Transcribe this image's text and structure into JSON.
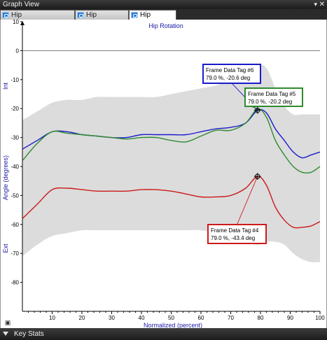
{
  "window": {
    "title": "Graph View",
    "pin_icon": "pin-icon",
    "close_icon": "close-icon"
  },
  "tabs": [
    {
      "label": "Hip Flexion/Extension",
      "icon": "chart-tab-icon",
      "active": false
    },
    {
      "label": "Hip Ab/Adduction",
      "icon": "chart-tab-icon",
      "active": false
    },
    {
      "label": "Hip Rotation",
      "icon": "chart-tab-icon",
      "active": true
    }
  ],
  "chart_data": {
    "type": "line",
    "title": "Hip Rotation",
    "xlabel": "Normalized (percent)",
    "ylabel": "Angle (degrees)",
    "ylabel_top": "Int",
    "ylabel_bottom": "Ext",
    "xlim": [
      0,
      100
    ],
    "ylim": [
      -90,
      10
    ],
    "x_ticks": [
      10,
      20,
      30,
      40,
      50,
      60,
      70,
      80,
      90,
      100
    ],
    "y_ticks": [
      10,
      0,
      -10,
      -20,
      -30,
      -40,
      -50,
      -60,
      -70,
      -80
    ],
    "grid": false,
    "x": [
      0,
      5,
      10,
      15,
      20,
      25,
      30,
      35,
      40,
      45,
      50,
      55,
      60,
      65,
      70,
      75,
      79,
      82,
      85,
      88,
      91,
      94,
      97,
      100
    ],
    "band": {
      "upper": [
        -24,
        -21,
        -18,
        -17,
        -17,
        -16,
        -16,
        -16,
        -16,
        -16,
        -15,
        -14,
        -13,
        -12,
        -10,
        -7,
        -5,
        -6,
        -13,
        -19,
        -22,
        -22,
        -22,
        -22
      ],
      "lower": [
        -71,
        -67,
        -64,
        -63,
        -62,
        -62,
        -62,
        -62,
        -62,
        -62,
        -62,
        -62,
        -62,
        -63,
        -64,
        -66,
        -67,
        -66,
        -66,
        -67,
        -70,
        -72,
        -73,
        -73
      ]
    },
    "series": [
      {
        "color": "#1a1acc",
        "values": [
          -34,
          -31,
          -28,
          -28,
          -29,
          -29.5,
          -30,
          -30,
          -29,
          -29,
          -29,
          -29,
          -28,
          -27,
          -26.5,
          -25,
          -20.6,
          -21.5,
          -27,
          -31,
          -35,
          -37,
          -36,
          -35
        ]
      },
      {
        "color": "#2e8b2e",
        "values": [
          -38,
          -32,
          -28,
          -28.5,
          -29,
          -29.5,
          -30,
          -30.5,
          -30,
          -30,
          -31,
          -31.5,
          -29.5,
          -27.5,
          -27.5,
          -25,
          -20.2,
          -23,
          -31,
          -36,
          -40,
          -42,
          -42,
          -40
        ]
      },
      {
        "color": "#cc1a1a",
        "values": [
          -58,
          -53,
          -48,
          -47.5,
          -48,
          -48.5,
          -48.5,
          -48.5,
          -48,
          -48,
          -48.5,
          -49.5,
          -50.5,
          -50.5,
          -50,
          -47.5,
          -43.4,
          -46.5,
          -54,
          -58.5,
          -61,
          -61,
          -60.5,
          -59
        ]
      }
    ],
    "tags": [
      {
        "label": "Frame Data Tag #6",
        "value": "79.0 %, -20.6 deg",
        "color": "#1a1acc"
      },
      {
        "label": "Frame Data Tag #5",
        "value": "79.0 %, -20.2 deg",
        "color": "#2e8b2e"
      },
      {
        "label": "Frame Data Tag #4",
        "value": "79.0 %, -43.4 deg",
        "color": "#cc1a1a"
      }
    ]
  },
  "footer": {
    "expander_icon": "expand-icon",
    "key_stats_label": "Key Stats",
    "key_stats_icon": "collapse-arrow-icon"
  }
}
